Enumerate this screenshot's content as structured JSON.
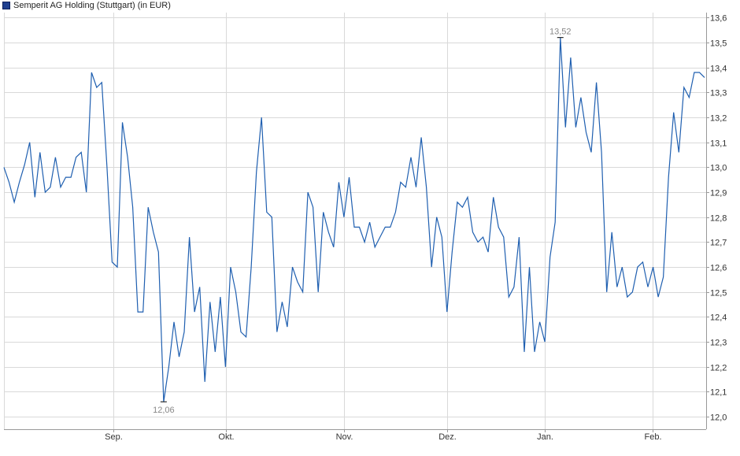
{
  "chart_data": {
    "type": "line",
    "legend": "Semperit AG Holding (Stuttgart) (in EUR)",
    "x_labels": [
      "Sep.",
      "Okt.",
      "Nov.",
      "Dez.",
      "Jan.",
      "Feb."
    ],
    "y_ticks": [
      "12,0",
      "12,1",
      "12,2",
      "12,3",
      "12,4",
      "12,5",
      "12,6",
      "12,7",
      "12,8",
      "12,9",
      "13,0",
      "13,1",
      "13,2",
      "13,3",
      "13,4",
      "13,5",
      "13,6"
    ],
    "ylim": [
      11.95,
      13.62
    ],
    "grid": true,
    "colors": {
      "line": "#1f5fb0",
      "grid": "#d9d9d9",
      "axis": "#999999"
    },
    "high": {
      "value": 13.52,
      "label": "13,52"
    },
    "low": {
      "value": 12.06,
      "label": "12,06"
    },
    "series": [
      {
        "values": [
          13.0,
          12.94,
          12.86,
          12.94,
          13.01,
          13.1,
          12.88,
          13.06,
          12.9,
          12.92,
          13.04,
          12.92,
          12.96,
          12.96,
          13.04,
          13.06,
          12.9,
          13.38,
          13.32,
          13.34,
          13.0,
          12.62,
          12.6,
          13.18,
          13.04,
          12.84,
          12.42,
          12.42,
          12.84,
          12.74,
          12.66,
          12.06,
          12.2,
          12.38,
          12.24,
          12.34,
          12.72,
          12.42,
          12.52,
          12.14,
          12.46,
          12.26,
          12.48,
          12.2,
          12.6,
          12.5,
          12.34,
          12.32,
          12.6,
          12.98,
          13.2,
          12.82,
          12.8,
          12.34,
          12.46,
          12.36,
          12.6,
          12.54,
          12.5,
          12.9,
          12.84,
          12.5,
          12.82,
          12.74,
          12.68,
          12.94,
          12.8,
          12.96,
          12.76,
          12.76,
          12.7,
          12.78,
          12.68,
          12.72,
          12.76,
          12.76,
          12.82,
          12.94,
          12.92,
          13.04,
          12.92,
          13.12,
          12.92,
          12.6,
          12.8,
          12.72,
          12.42,
          12.66,
          12.86,
          12.84,
          12.88,
          12.74,
          12.7,
          12.72,
          12.66,
          12.88,
          12.76,
          12.72,
          12.48,
          12.52,
          12.72,
          12.26,
          12.6,
          12.26,
          12.38,
          12.3,
          12.64,
          12.78,
          13.52,
          13.16,
          13.44,
          13.16,
          13.28,
          13.14,
          13.06,
          13.34,
          13.06,
          12.5,
          12.74,
          12.52,
          12.6,
          12.48,
          12.5,
          12.6,
          12.62,
          12.52,
          12.6,
          12.48,
          12.56,
          12.96,
          13.22,
          13.06,
          13.32,
          13.28,
          13.38,
          13.38,
          13.36
        ]
      }
    ]
  }
}
